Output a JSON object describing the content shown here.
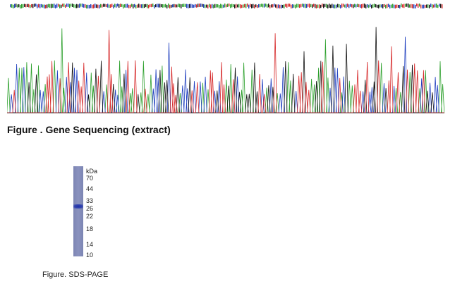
{
  "gene_figure": {
    "caption": "Figure . Gene Sequencing (extract)",
    "base_colors": {
      "A": "#2ca02c",
      "C": "#1f3fbf",
      "G": "#111111",
      "T": "#d62728"
    }
  },
  "gel_figure": {
    "caption": "Figure. SDS-PAGE",
    "unit": "kDa",
    "markers": [
      "70",
      "44",
      "33",
      "26",
      "22",
      "18",
      "14",
      "10"
    ],
    "band_kda": 27,
    "lane_color": "#8088b8",
    "band_color": "#2236a8"
  }
}
